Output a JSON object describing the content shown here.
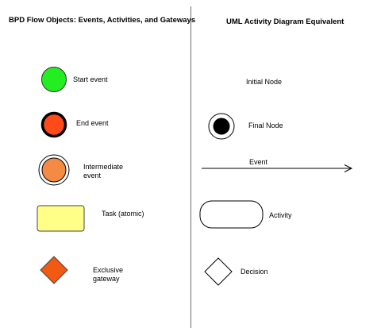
{
  "left_panel": {
    "title": "BPD Flow Objects: Events, Activities, and Gateways",
    "items": [
      {
        "label": "Start event",
        "shape": "circle",
        "fill": "#22ee22"
      },
      {
        "label": "End event",
        "shape": "circle-thick-border",
        "fill": "#ff4a1a"
      },
      {
        "label_line1": "Intermediate",
        "label_line2": "event",
        "shape": "double-circle",
        "fill": "#f58a45"
      },
      {
        "label": "Task (atomic)",
        "shape": "rounded-rectangle",
        "fill": "#ffff88"
      },
      {
        "label_line1": "Exclusive",
        "label_line2": "gateway",
        "shape": "diamond",
        "fill": "#f25a12"
      }
    ]
  },
  "right_panel": {
    "title": "UML Activity Diagram Equivalent",
    "items": [
      {
        "label": "Initial Node"
      },
      {
        "label": "Final Node",
        "shape": "bullseye"
      },
      {
        "label": "Event",
        "shape": "arrow"
      },
      {
        "label": "Activity",
        "shape": "rounded-rectangle"
      },
      {
        "label": "Decision",
        "shape": "diamond"
      }
    ]
  }
}
